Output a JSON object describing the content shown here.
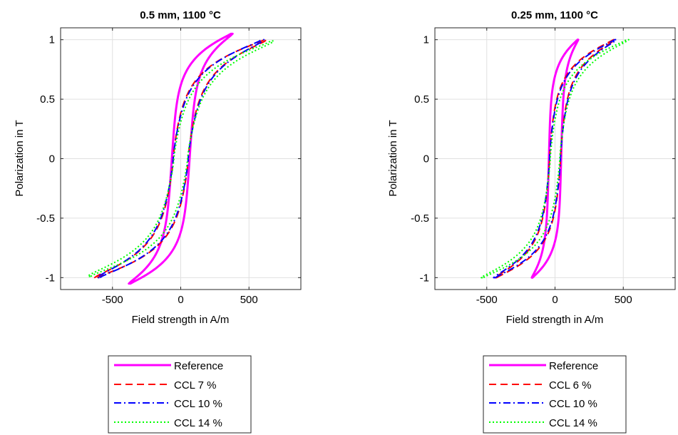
{
  "chart_data": [
    {
      "type": "line",
      "title": "0.5 mm, 1100 °C",
      "xlabel": "Field strength in A/m",
      "ylabel": "Polarization in T",
      "xlim": [
        -880,
        880
      ],
      "ylim": [
        -1.1,
        1.1
      ],
      "xticks": [
        -500,
        0,
        500
      ],
      "xtick_labels": [
        "-500",
        "0",
        "500"
      ],
      "yticks": [
        -1,
        -0.5,
        0,
        0.5,
        1
      ],
      "ytick_labels": [
        "-1",
        "-0.5",
        "0",
        "0.5",
        "1"
      ],
      "grid": true,
      "legend_position": "below",
      "series": [
        {
          "name": "Reference",
          "color": "#ff00ff",
          "style": "solid",
          "Jmax": 1.05,
          "Hmax": 380,
          "Hc": 65,
          "Hs": 60,
          "shape": 1.0
        },
        {
          "name": "CCL 7 %",
          "color": "#ff0000",
          "style": "dashed",
          "Jmax": 1.0,
          "Hmax": 630,
          "Hc": 55,
          "Hs": 150,
          "shape": 1.25
        },
        {
          "name": "CCL 10 %",
          "color": "#0000ff",
          "style": "dashdot",
          "Jmax": 1.0,
          "Hmax": 610,
          "Hc": 55,
          "Hs": 165,
          "shape": 1.25
        },
        {
          "name": "CCL 14 %",
          "color": "#00ff00",
          "style": "dotted",
          "Jmax": 0.99,
          "Hmax": 680,
          "Hc": 50,
          "Hs": 190,
          "shape": 1.25
        }
      ]
    },
    {
      "type": "line",
      "title": "0.25 mm, 1100 °C",
      "xlabel": "Field strength in A/m",
      "ylabel": "Polarization in T",
      "xlim": [
        -880,
        880
      ],
      "ylim": [
        -1.1,
        1.1
      ],
      "xticks": [
        -500,
        0,
        500
      ],
      "xtick_labels": [
        "-500",
        "0",
        "500"
      ],
      "yticks": [
        -1,
        -0.5,
        0,
        0.5,
        1
      ],
      "ytick_labels": [
        "-1",
        "-0.5",
        "0",
        "0.5",
        "1"
      ],
      "grid": true,
      "legend_position": "below",
      "series": [
        {
          "name": "Reference",
          "color": "#ff00ff",
          "style": "solid",
          "Jmax": 1.0,
          "Hmax": 170,
          "Hc": 45,
          "Hs": 22,
          "shape": 1.0
        },
        {
          "name": "CCL 6 %",
          "color": "#ff0000",
          "style": "dashed",
          "Jmax": 1.0,
          "Hmax": 440,
          "Hc": 40,
          "Hs": 85,
          "shape": 1.25
        },
        {
          "name": "CCL 10 %",
          "color": "#0000ff",
          "style": "dashdot",
          "Jmax": 1.0,
          "Hmax": 450,
          "Hc": 40,
          "Hs": 95,
          "shape": 1.25
        },
        {
          "name": "CCL 14 %",
          "color": "#00ff00",
          "style": "dotted",
          "Jmax": 1.0,
          "Hmax": 540,
          "Hc": 35,
          "Hs": 120,
          "shape": 1.25
        }
      ]
    }
  ]
}
